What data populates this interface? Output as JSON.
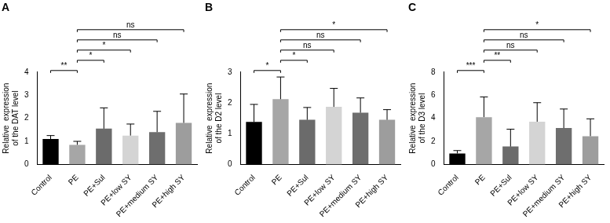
{
  "chart_data": [
    {
      "type": "bar",
      "title": "A",
      "y_label": [
        "Relative  expression",
        "of the DAT level"
      ],
      "categories": [
        "Control",
        "PE",
        "PE+Sul",
        "PE+low SY",
        "PE+medium SY",
        "PE+high SY"
      ],
      "values": [
        1.1,
        0.85,
        1.55,
        1.25,
        1.4,
        1.8
      ],
      "errors": [
        0.15,
        0.15,
        0.9,
        0.5,
        0.9,
        1.25
      ],
      "colors": [
        "#000000",
        "#a6a6a6",
        "#6b6b6b",
        "#d4d4d4",
        "#6e6e6e",
        "#9d9d9d"
      ],
      "ylim": [
        0,
        4
      ],
      "yticks": [
        0,
        1,
        2,
        3,
        4
      ],
      "grid": false,
      "annotations": [
        {
          "from": "Control",
          "to": "PE",
          "text": "**"
        },
        {
          "from": "PE",
          "to": "PE+Sul",
          "text": "*"
        },
        {
          "from": "PE",
          "to": "PE+low SY",
          "text": "*"
        },
        {
          "from": "PE",
          "to": "PE+medium SY",
          "text": "ns"
        },
        {
          "from": "PE",
          "to": "PE+high SY",
          "text": "ns"
        }
      ]
    },
    {
      "type": "bar",
      "title": "B",
      "y_label": [
        "Relative  expression",
        "of the D2 level"
      ],
      "categories": [
        "Control",
        "PE",
        "PE+Sul",
        "PE+low SY",
        "PE+medium SY",
        "PE+high SY"
      ],
      "values": [
        1.38,
        2.12,
        1.45,
        1.87,
        1.68,
        1.45
      ],
      "errors": [
        0.57,
        0.72,
        0.4,
        0.6,
        0.48,
        0.33
      ],
      "colors": [
        "#000000",
        "#a6a6a6",
        "#6b6b6b",
        "#d4d4d4",
        "#6e6e6e",
        "#9d9d9d"
      ],
      "ylim": [
        0,
        3
      ],
      "yticks": [
        0,
        1,
        2,
        3
      ],
      "grid": false,
      "annotations": [
        {
          "from": "Control",
          "to": "PE",
          "text": "*"
        },
        {
          "from": "PE",
          "to": "PE+Sul",
          "text": "*"
        },
        {
          "from": "PE",
          "to": "PE+low SY",
          "text": "ns"
        },
        {
          "from": "PE",
          "to": "PE+medium SY",
          "text": "ns"
        },
        {
          "from": "PE",
          "to": "PE+high SY",
          "text": "*"
        }
      ]
    },
    {
      "type": "bar",
      "title": "C",
      "y_label": [
        "Relative  expression",
        "of the D3 level"
      ],
      "categories": [
        "Control",
        "PE",
        "PE+Sul",
        "PE+low SY",
        "PE+medium SY",
        "PE+high SY"
      ],
      "values": [
        0.95,
        4.1,
        1.55,
        3.7,
        3.15,
        2.45
      ],
      "errors": [
        0.25,
        1.75,
        1.5,
        1.65,
        1.65,
        1.5
      ],
      "colors": [
        "#000000",
        "#a6a6a6",
        "#6b6b6b",
        "#d4d4d4",
        "#6e6e6e",
        "#9d9d9d"
      ],
      "ylim": [
        0,
        8
      ],
      "yticks": [
        0,
        2,
        4,
        6,
        8
      ],
      "grid": false,
      "annotations": [
        {
          "from": "Control",
          "to": "PE",
          "text": "***"
        },
        {
          "from": "PE",
          "to": "PE+Sul",
          "text": "**"
        },
        {
          "from": "PE",
          "to": "PE+low SY",
          "text": "ns"
        },
        {
          "from": "PE",
          "to": "PE+medium SY",
          "text": "ns"
        },
        {
          "from": "PE",
          "to": "PE+high SY",
          "text": "*"
        }
      ]
    }
  ]
}
